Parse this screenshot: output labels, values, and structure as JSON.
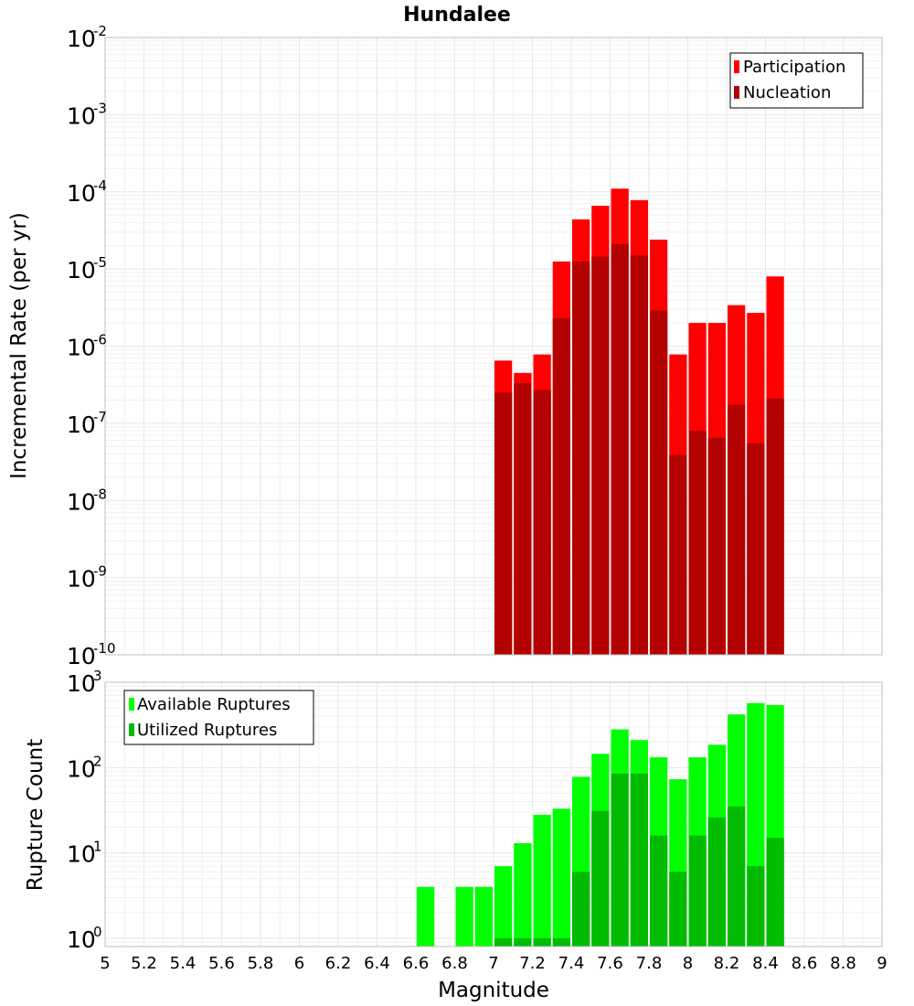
{
  "chart_data": [
    {
      "type": "bar",
      "title": "Hundalee",
      "ylabel": "Incremental Rate (per yr)",
      "xlabel": "",
      "ylog": true,
      "ylim": [
        1e-10,
        0.01
      ],
      "xlim": [
        5,
        9
      ],
      "grid": true,
      "legend_position": "top-right",
      "bar_width": 0.1,
      "x": [
        7.05,
        7.15,
        7.25,
        7.35,
        7.45,
        7.55,
        7.65,
        7.75,
        7.85,
        7.95,
        8.05,
        8.15,
        8.25,
        8.35,
        8.45
      ],
      "series": [
        {
          "name": "Participation",
          "color": "#ff0000",
          "values": [
            6.5e-07,
            4.5e-07,
            7.8e-07,
            1.25e-05,
            4.4e-05,
            6.6e-05,
            0.00011,
            7.8e-05,
            2.4e-05,
            7.8e-07,
            2e-06,
            2e-06,
            3.4e-06,
            2.7e-06,
            8e-06
          ]
        },
        {
          "name": "Nucleation",
          "color": "#b30000",
          "values": [
            2.5e-07,
            3.3e-07,
            2.7e-07,
            2.3e-06,
            1.25e-05,
            1.45e-05,
            2.1e-05,
            1.5e-05,
            2.9e-06,
            3.9e-08,
            8e-08,
            6.5e-08,
            1.75e-07,
            5.5e-08,
            2.1e-07
          ]
        }
      ],
      "yticks": [
        {
          "base": "10",
          "exp": "-2",
          "value": 0.01
        },
        {
          "base": "10",
          "exp": "-3",
          "value": 0.001
        },
        {
          "base": "10",
          "exp": "-4",
          "value": 0.0001
        },
        {
          "base": "10",
          "exp": "-5",
          "value": 1e-05
        },
        {
          "base": "10",
          "exp": "-6",
          "value": 1e-06
        },
        {
          "base": "10",
          "exp": "-7",
          "value": 1e-07
        },
        {
          "base": "10",
          "exp": "-8",
          "value": 1e-08
        },
        {
          "base": "10",
          "exp": "-9",
          "value": 1e-09
        },
        {
          "base": "10",
          "exp": "-10",
          "value": 1e-10
        }
      ]
    },
    {
      "type": "bar",
      "title": "",
      "ylabel": "Rupture Count",
      "xlabel": "Magnitude",
      "ylog": true,
      "ylim": [
        0.8,
        1000
      ],
      "xlim": [
        5,
        9
      ],
      "grid": true,
      "legend_position": "top-left",
      "bar_width": 0.1,
      "x": [
        6.65,
        6.85,
        6.95,
        7.05,
        7.15,
        7.25,
        7.35,
        7.45,
        7.55,
        7.65,
        7.75,
        7.85,
        7.95,
        8.05,
        8.15,
        8.25,
        8.35,
        8.45
      ],
      "series": [
        {
          "name": "Available Ruptures",
          "color": "#00ff00",
          "values": [
            4,
            4,
            4,
            7,
            13,
            28,
            33,
            78,
            145,
            280,
            210,
            132,
            73,
            132,
            185,
            420,
            570,
            540
          ]
        },
        {
          "name": "Utilized Ruptures",
          "color": "#00bb00",
          "values": [
            0,
            0,
            0,
            1,
            1,
            1,
            1,
            6,
            31,
            85,
            85,
            16,
            6,
            16,
            26,
            35,
            7,
            15
          ]
        }
      ],
      "yticks": [
        {
          "base": "10",
          "exp": "3",
          "value": 1000
        },
        {
          "base": "10",
          "exp": "2",
          "value": 100
        },
        {
          "base": "10",
          "exp": "1",
          "value": 10
        },
        {
          "base": "10",
          "exp": "0",
          "value": 1
        }
      ],
      "xticks": [
        "5",
        "5.2",
        "5.4",
        "5.6",
        "5.8",
        "6",
        "6.2",
        "6.4",
        "6.6",
        "6.8",
        "7",
        "7.2",
        "7.4",
        "7.6",
        "7.8",
        "8",
        "8.2",
        "8.4",
        "8.6",
        "8.8",
        "9"
      ]
    }
  ]
}
